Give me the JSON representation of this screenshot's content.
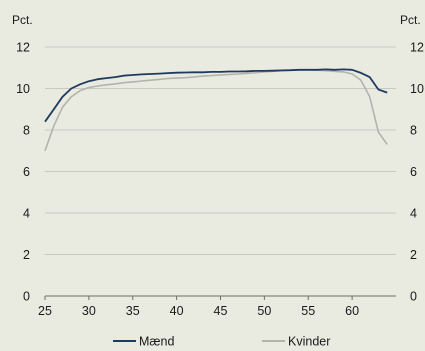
{
  "chart_data": {
    "type": "line",
    "title": "",
    "xlabel": "",
    "ylabel_left": "Pct.",
    "ylabel_right": "Pct.",
    "xlim": [
      25,
      65
    ],
    "ylim": [
      0,
      12
    ],
    "x_ticks": [
      25,
      30,
      35,
      40,
      45,
      50,
      55,
      60
    ],
    "y_ticks": [
      0,
      2,
      4,
      6,
      8,
      10,
      12
    ],
    "grid": "horizontal",
    "legend_position": "bottom",
    "x": [
      25,
      26,
      27,
      28,
      29,
      30,
      31,
      32,
      33,
      34,
      35,
      36,
      37,
      38,
      39,
      40,
      41,
      42,
      43,
      44,
      45,
      46,
      47,
      48,
      49,
      50,
      51,
      52,
      53,
      54,
      55,
      56,
      57,
      58,
      59,
      60,
      61,
      62,
      63,
      64
    ],
    "series": [
      {
        "name": "Mænd",
        "color": "#1f3a5f",
        "values": [
          8.4,
          9.0,
          9.6,
          10.0,
          10.2,
          10.35,
          10.45,
          10.5,
          10.55,
          10.62,
          10.65,
          10.68,
          10.7,
          10.72,
          10.74,
          10.76,
          10.77,
          10.78,
          10.78,
          10.8,
          10.8,
          10.82,
          10.82,
          10.83,
          10.85,
          10.85,
          10.86,
          10.87,
          10.88,
          10.9,
          10.9,
          10.9,
          10.92,
          10.9,
          10.92,
          10.9,
          10.75,
          10.55,
          9.95,
          9.8
        ]
      },
      {
        "name": "Kvinder",
        "color": "#b3b3ac",
        "values": [
          7.0,
          8.2,
          9.1,
          9.6,
          9.9,
          10.05,
          10.12,
          10.18,
          10.22,
          10.28,
          10.32,
          10.36,
          10.4,
          10.44,
          10.48,
          10.5,
          10.52,
          10.56,
          10.6,
          10.62,
          10.65,
          10.68,
          10.7,
          10.73,
          10.76,
          10.8,
          10.83,
          10.86,
          10.88,
          10.9,
          10.9,
          10.88,
          10.86,
          10.83,
          10.8,
          10.7,
          10.4,
          9.6,
          7.9,
          7.3
        ]
      }
    ]
  }
}
